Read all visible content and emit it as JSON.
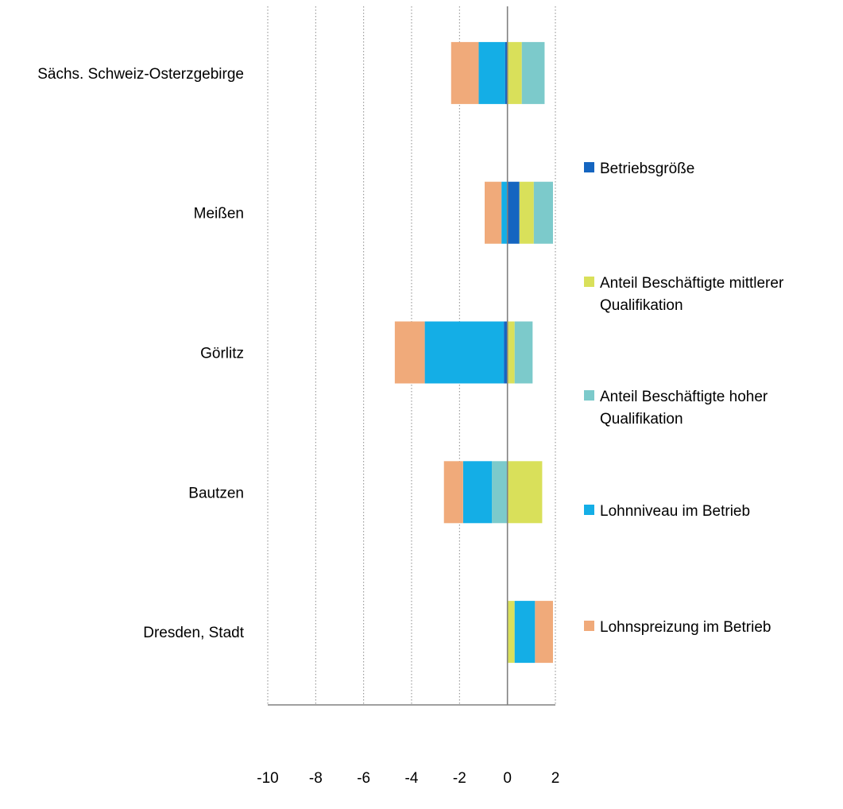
{
  "chart_data": {
    "type": "bar",
    "orientation": "horizontal",
    "stacked": true,
    "title": "",
    "xlabel": "",
    "ylabel": "",
    "xlim": [
      -10,
      2
    ],
    "xticks": [
      "-10",
      "-8",
      "-6",
      "-4",
      "-2",
      "0",
      "2"
    ],
    "grid": true,
    "legend_position": "right",
    "categories": [
      "Sächs. Schweiz-Osterzgebirge",
      "Meißen",
      "Görlitz",
      "Bautzen",
      "Dresden, Stadt"
    ],
    "series": [
      {
        "name": "Betriebsgröße",
        "color": "#1565c0",
        "values": [
          -0.1,
          0.5,
          -0.15,
          0.0,
          0.0
        ]
      },
      {
        "name": "Anteil Beschäftigte mittlerer Qualifikation",
        "color": "#d9e05a",
        "values": [
          0.6,
          0.6,
          0.3,
          1.45,
          0.3
        ]
      },
      {
        "name": "Anteil Beschäftigte hoher Qualifikation",
        "color": "#7ccacb",
        "values": [
          0.95,
          0.8,
          0.75,
          -0.65,
          0.0
        ]
      },
      {
        "name": "Lohnniveau im Betrieb",
        "color": "#14aee6",
        "values": [
          -1.1,
          -0.25,
          -3.3,
          -1.2,
          0.85
        ]
      },
      {
        "name": "Lohnspreizung im Betrieb",
        "color": "#f0aa7a",
        "values": [
          -1.15,
          -0.7,
          -1.25,
          -0.8,
          0.75
        ]
      }
    ],
    "legend_lines": [
      [
        "Betriebsgröße"
      ],
      [
        "Anteil Beschäftigte mittlerer",
        "Qualifikation"
      ],
      [
        "Anteil Beschäftigte hoher",
        "Qualifikation"
      ],
      [
        "Lohnniveau im Betrieb"
      ],
      [
        "Lohnspreizung im Betrieb"
      ]
    ]
  }
}
